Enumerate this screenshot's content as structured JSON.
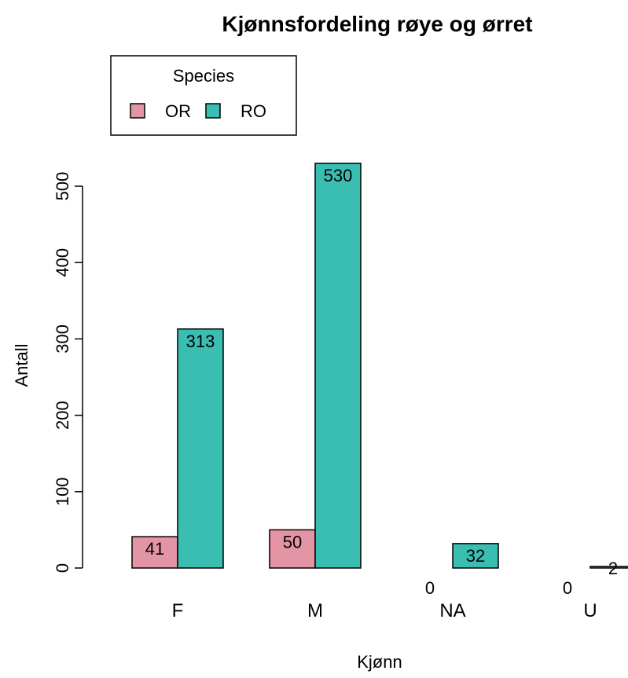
{
  "chart_data": {
    "type": "bar",
    "title": "Kjønnsfordeling røye og ørret",
    "xlabel": "Kjønn",
    "ylabel": "Antall",
    "categories": [
      "F",
      "M",
      "NA",
      "U"
    ],
    "series": [
      {
        "name": "OR",
        "values": [
          41,
          50,
          0,
          0
        ],
        "color": "#E495A5"
      },
      {
        "name": "RO",
        "values": [
          313,
          530,
          32,
          2
        ],
        "color": "#39BEB1"
      }
    ],
    "bar_labels": [
      [
        "41",
        "50",
        "0",
        "0"
      ],
      [
        "313",
        "530",
        "32",
        "2"
      ]
    ],
    "yticks": [
      0,
      100,
      200,
      300,
      400,
      500
    ],
    "ylim": [
      0,
      530
    ],
    "legend": {
      "title": "Species",
      "position": "top-left"
    },
    "grid": false
  }
}
